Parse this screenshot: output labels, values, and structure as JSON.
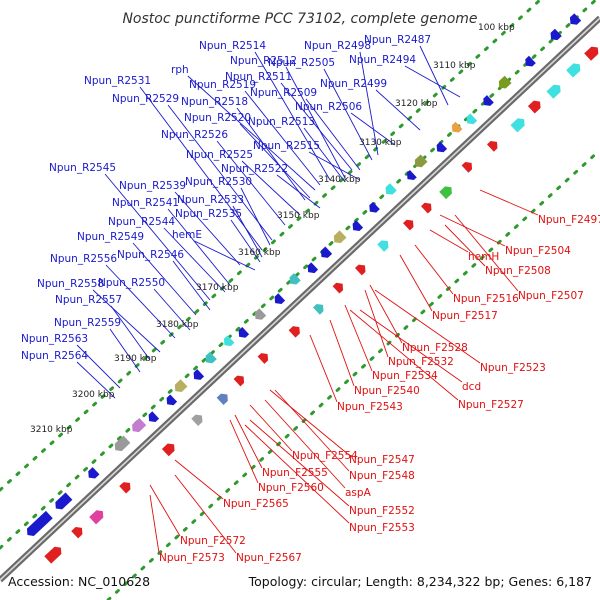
{
  "title": "Nostoc punctiforme PCC 73102, complete genome",
  "footer": {
    "accession": "Accession: NC_010628",
    "summary": "Topology: circular; Length: 8,234,322 bp; Genes: 6,187"
  },
  "colors": {
    "reverse_label": "#1a1acc",
    "forward_label": "#e01010",
    "backbone": "#8a8a8a",
    "dotted_track": "#2e9a2e"
  },
  "scale_ticks": [
    "100 kbp",
    "3110 kbp",
    "3120 kbp",
    "3130 kbp",
    "3140 kbp",
    "3150 kbp",
    "3160 kbp",
    "3170 kbp",
    "3180 kbp",
    "3190 kbp",
    "3200 kbp",
    "3210 kbp"
  ],
  "reverse_genes": [
    "Npun_R2514",
    "Npun_R2512",
    "Npun_R2498",
    "Npun_R2487",
    "rph",
    "Npun_R2505",
    "Npun_R2494",
    "Npun_R2531",
    "Npun_R2519",
    "Npun_R2511",
    "Npun_R2529",
    "Npun_R2509",
    "Npun_R2499",
    "Npun_R2518",
    "Npun_R2520",
    "Npun_R2506",
    "Npun_R2513",
    "Npun_R2526",
    "Npun_R2515",
    "Npun_R2525",
    "Npun_R2522",
    "Npun_R2545",
    "Npun_R2539",
    "Npun_R2530",
    "Npun_R2541",
    "Npun_R2533",
    "Npun_R2535",
    "Npun_R2544",
    "Npun_R2549",
    "hemE",
    "Npun_R2556",
    "Npun_R2546",
    "Npun_R2558",
    "Npun_R2550",
    "Npun_R2557",
    "Npun_R2559",
    "Npun_R2563",
    "Npun_R2564"
  ],
  "forward_genes": [
    "Npun_F2497",
    "Npun_F2504",
    "hemH",
    "Npun_F2508",
    "Npun_F2507",
    "Npun_F2516",
    "Npun_F2517",
    "Npun_F2528",
    "Npun_F2532",
    "Npun_F2523",
    "Npun_F2534",
    "dcd",
    "Npun_F2540",
    "Npun_F2527",
    "Npun_F2543",
    "Npun_F2547",
    "Npun_F2554",
    "Npun_F2548",
    "Npun_F2555",
    "Npun_F2560",
    "aspA",
    "Npun_F2565",
    "Npun_F2552",
    "Npun_F2553",
    "Npun_F2572",
    "Npun_F2573",
    "Npun_F2567"
  ]
}
